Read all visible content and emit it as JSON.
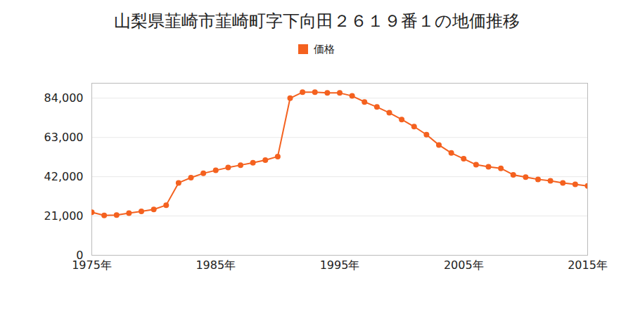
{
  "chart_data": {
    "type": "line",
    "title": "山梨県韮崎市韮崎町字下向田２６１９番１の地価推移",
    "x": [
      1975,
      1976,
      1977,
      1978,
      1979,
      1980,
      1981,
      1982,
      1983,
      1984,
      1985,
      1986,
      1987,
      1988,
      1989,
      1990,
      1991,
      1992,
      1993,
      1994,
      1995,
      1996,
      1997,
      1998,
      1999,
      2000,
      2001,
      2002,
      2003,
      2004,
      2005,
      2006,
      2007,
      2008,
      2009,
      2010,
      2011,
      2012,
      2013,
      2014,
      2015
    ],
    "series": [
      {
        "name": "価格",
        "color": "#f4611f",
        "marker": "circle",
        "values": [
          23000,
          21300,
          21500,
          22500,
          23500,
          24500,
          26800,
          38700,
          41500,
          43800,
          45400,
          46900,
          48200,
          49500,
          50900,
          52800,
          84000,
          87200,
          87200,
          86800,
          86800,
          85200,
          82000,
          79300,
          76200,
          72600,
          68800,
          64500,
          59000,
          54700,
          51600,
          48400,
          47300,
          46500,
          43000,
          41800,
          40600,
          39800,
          38700,
          37900,
          37100
        ]
      }
    ],
    "xlim": [
      1975,
      2015
    ],
    "xticks": [
      {
        "value": 1975,
        "label": "1975年"
      },
      {
        "value": 1985,
        "label": "1985年"
      },
      {
        "value": 1995,
        "label": "1995年"
      },
      {
        "value": 2005,
        "label": "2005年"
      },
      {
        "value": 2015,
        "label": "2015年"
      }
    ],
    "ylim": [
      0,
      92000
    ],
    "yticks": [
      0,
      {
        "value": 21000,
        "label": "21,000"
      },
      {
        "value": 42000,
        "label": "42,000"
      },
      {
        "value": 63000,
        "label": "63,000"
      },
      {
        "value": 84000,
        "label": "84,000"
      }
    ],
    "grid": true,
    "legend": "top"
  }
}
